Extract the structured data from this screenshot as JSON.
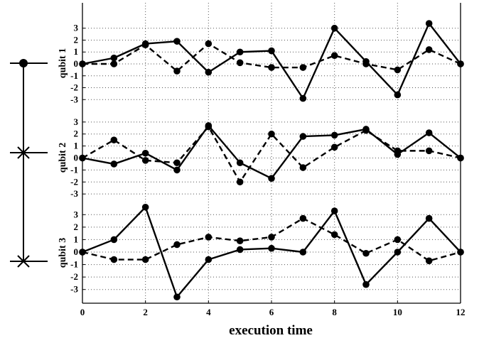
{
  "chart_data": {
    "type": "line",
    "xlabel": "execution time",
    "x": [
      0,
      1,
      2,
      3,
      4,
      5,
      6,
      7,
      8,
      9,
      10,
      11,
      12
    ],
    "x_ticks": [
      "0",
      "2",
      "4",
      "6",
      "8",
      "10",
      "12"
    ],
    "xlim": [
      0,
      12
    ],
    "y_ticks": [
      "3",
      "2",
      "1",
      "0",
      "-1",
      "-2",
      "-3"
    ],
    "ylim": [
      -3.7,
      3.7
    ],
    "grid": true,
    "panels": [
      {
        "ylabel": "qubit 1",
        "series": [
          {
            "style": "solid",
            "values": [
              0,
              0.5,
              1.7,
              1.9,
              -0.7,
              1.0,
              1.1,
              -2.9,
              3.0,
              0.2,
              -2.6,
              3.4,
              0.0
            ]
          },
          {
            "style": "dashed",
            "values": [
              0,
              0.0,
              1.6,
              -0.6,
              1.7,
              0.1,
              -0.3,
              -0.3,
              0.7,
              0.0,
              -0.5,
              1.2,
              0.0
            ]
          }
        ]
      },
      {
        "ylabel": "qubit 2",
        "series": [
          {
            "style": "solid",
            "values": [
              0,
              -0.5,
              0.4,
              -1.0,
              2.7,
              -0.4,
              -1.7,
              1.8,
              1.9,
              2.4,
              0.3,
              2.1,
              0.0
            ]
          },
          {
            "style": "dashed",
            "values": [
              0,
              1.5,
              -0.2,
              -0.4,
              2.6,
              -2.0,
              2.0,
              -0.8,
              0.9,
              2.3,
              0.6,
              0.6,
              0.0
            ]
          }
        ]
      },
      {
        "ylabel": "qubit 3",
        "series": [
          {
            "style": "solid",
            "values": [
              0,
              1.0,
              3.6,
              -3.6,
              -0.6,
              0.2,
              0.3,
              0.0,
              3.3,
              -2.6,
              0.0,
              2.7,
              0.0
            ]
          },
          {
            "style": "dashed",
            "values": [
              0,
              -0.6,
              -0.6,
              0.6,
              1.2,
              0.9,
              1.2,
              2.7,
              1.4,
              -0.1,
              1.0,
              -0.7,
              0.0
            ]
          }
        ]
      }
    ]
  },
  "circuit": {
    "symbols": [
      "dot",
      "cross",
      "cross"
    ]
  }
}
